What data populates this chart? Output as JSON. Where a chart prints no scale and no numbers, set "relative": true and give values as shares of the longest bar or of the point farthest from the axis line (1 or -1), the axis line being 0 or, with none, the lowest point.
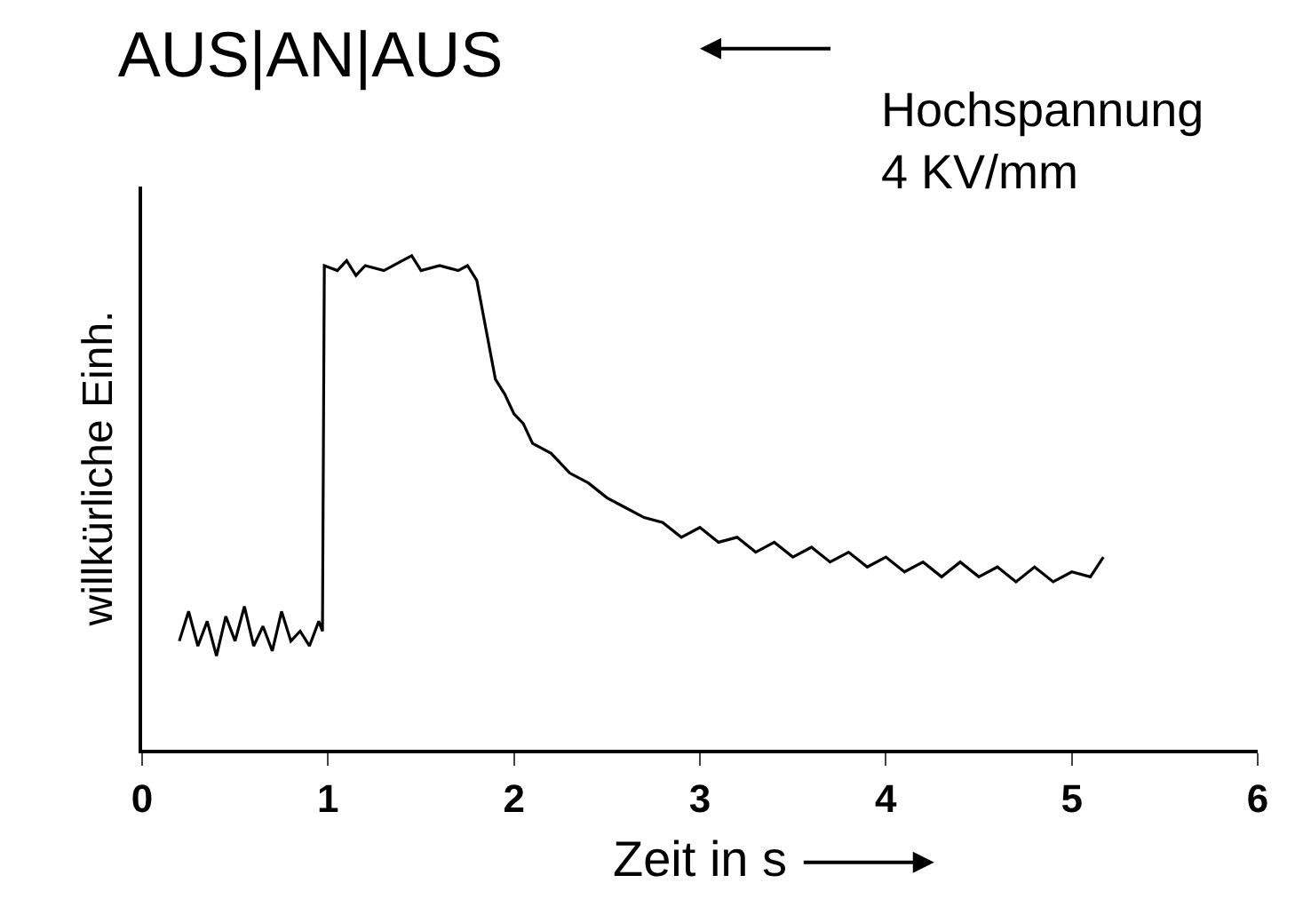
{
  "chart_data": {
    "type": "line",
    "title": "AUS|AN|AUS",
    "xlabel": "Zeit in s",
    "ylabel": "willkürliche Einh.",
    "annotations": [
      "Hochspannung\n4 KV/mm"
    ],
    "relative": true,
    "xlim": [
      0,
      6
    ],
    "xticks": [
      0,
      1,
      2,
      3,
      4,
      5,
      6
    ],
    "marker": "none",
    "line_style": "solid",
    "series": [
      {
        "color": "#000000",
        "x": [
          0.2,
          0.25,
          0.3,
          0.35,
          0.4,
          0.45,
          0.5,
          0.55,
          0.6,
          0.65,
          0.7,
          0.75,
          0.8,
          0.85,
          0.9,
          0.95,
          0.97,
          0.98,
          1.05,
          1.1,
          1.15,
          1.2,
          1.3,
          1.4,
          1.45,
          1.5,
          1.6,
          1.7,
          1.75,
          1.8,
          1.85,
          1.9,
          1.95,
          2.0,
          2.05,
          2.1,
          2.2,
          2.3,
          2.4,
          2.5,
          2.6,
          2.7,
          2.8,
          2.9,
          3.0,
          3.1,
          3.2,
          3.3,
          3.4,
          3.5,
          3.6,
          3.7,
          3.8,
          3.9,
          4.0,
          4.1,
          4.2,
          4.3,
          4.4,
          4.5,
          4.6,
          4.7,
          4.8,
          4.9,
          5.0,
          5.1,
          5.17
        ],
        "values": [
          0.22,
          0.28,
          0.21,
          0.26,
          0.19,
          0.27,
          0.22,
          0.29,
          0.21,
          0.25,
          0.2,
          0.28,
          0.22,
          0.24,
          0.21,
          0.26,
          0.24,
          0.98,
          0.97,
          0.99,
          0.96,
          0.98,
          0.97,
          0.99,
          1.0,
          0.97,
          0.98,
          0.97,
          0.98,
          0.95,
          0.85,
          0.75,
          0.72,
          0.68,
          0.66,
          0.62,
          0.6,
          0.56,
          0.54,
          0.51,
          0.49,
          0.47,
          0.46,
          0.43,
          0.45,
          0.42,
          0.43,
          0.4,
          0.42,
          0.39,
          0.41,
          0.38,
          0.4,
          0.37,
          0.39,
          0.36,
          0.38,
          0.35,
          0.38,
          0.35,
          0.37,
          0.34,
          0.37,
          0.34,
          0.36,
          0.35,
          0.39
        ]
      }
    ]
  }
}
